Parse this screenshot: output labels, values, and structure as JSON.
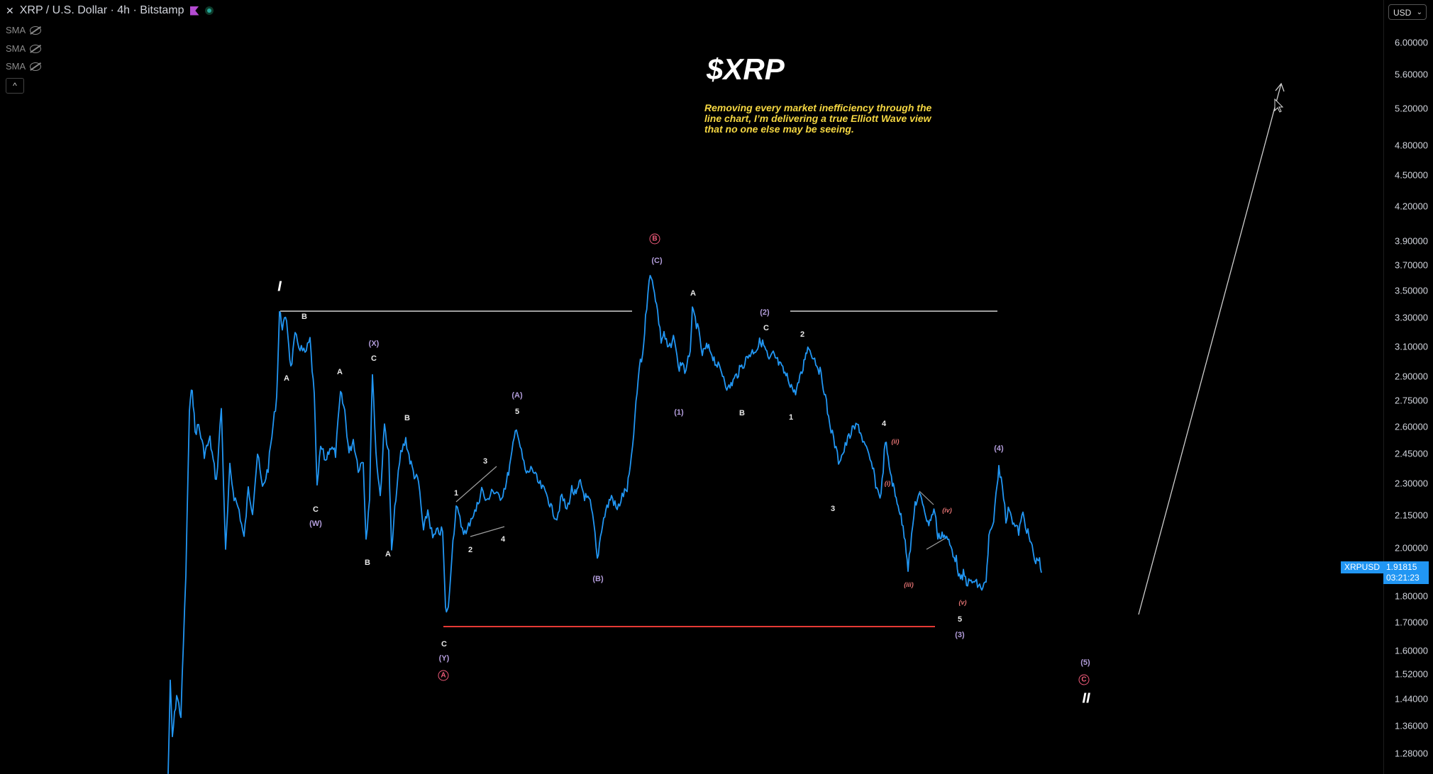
{
  "header": {
    "symbol_title": "XRP / U.S. Dollar · 4h · Bitstamp",
    "indicators": [
      "SMA",
      "SMA",
      "SMA"
    ],
    "collapse_glyph": "^"
  },
  "annotation": {
    "title": "$XRP",
    "description": "Removing every market inefficiency through the line chart, I’m delivering a true Elliott Wave view that no one else may be seeing."
  },
  "axis": {
    "currency": "USD",
    "ticks": [
      "6.00000",
      "5.60000",
      "5.20000",
      "4.80000",
      "4.50000",
      "4.20000",
      "3.90000",
      "3.70000",
      "3.50000",
      "3.30000",
      "3.10000",
      "2.90000",
      "2.75000",
      "2.60000",
      "2.45000",
      "2.30000",
      "2.15000",
      "2.00000",
      "1.80000",
      "1.70000",
      "1.60000",
      "1.52000",
      "1.44000",
      "1.36000",
      "1.28000"
    ],
    "symbol_badge": "XRPUSD",
    "last_price": "1.91815",
    "countdown": "03:21:23"
  },
  "colors": {
    "line": "#2196f3",
    "accent": "#f5d742",
    "support": "#e53935",
    "resistance": "#9e9e9e"
  },
  "wave_labels": [
    {
      "t": "I",
      "c": "big"
    },
    {
      "t": "B",
      "c": ""
    },
    {
      "t": "A",
      "c": ""
    },
    {
      "t": "A",
      "c": ""
    },
    {
      "t": "(X)",
      "c": "p"
    },
    {
      "t": "C",
      "c": ""
    },
    {
      "t": "C",
      "c": ""
    },
    {
      "t": "(W)",
      "c": "p"
    },
    {
      "t": "B",
      "c": ""
    },
    {
      "t": "B",
      "c": ""
    },
    {
      "t": "A",
      "c": ""
    },
    {
      "t": "1",
      "c": ""
    },
    {
      "t": "2",
      "c": ""
    },
    {
      "t": "3",
      "c": ""
    },
    {
      "t": "4",
      "c": ""
    },
    {
      "t": "(A)",
      "c": "p"
    },
    {
      "t": "5",
      "c": ""
    },
    {
      "t": "C",
      "c": ""
    },
    {
      "t": "(Y)",
      "c": "p"
    },
    {
      "t": "A",
      "c": "circ"
    },
    {
      "t": "(B)",
      "c": "p"
    },
    {
      "t": "B",
      "c": "circ"
    },
    {
      "t": "(C)",
      "c": "p"
    },
    {
      "t": "A",
      "c": ""
    },
    {
      "t": "(1)",
      "c": "p"
    },
    {
      "t": "(2)",
      "c": "p"
    },
    {
      "t": "C",
      "c": ""
    },
    {
      "t": "B",
      "c": ""
    },
    {
      "t": "2",
      "c": ""
    },
    {
      "t": "1",
      "c": ""
    },
    {
      "t": "4",
      "c": ""
    },
    {
      "t": "3",
      "c": ""
    },
    {
      "t": "(iii)",
      "c": "r"
    },
    {
      "t": "(i)",
      "c": "r"
    },
    {
      "t": "(ii)",
      "c": "r"
    },
    {
      "t": "(iv)",
      "c": "r"
    },
    {
      "t": "(v)",
      "c": "r"
    },
    {
      "t": "5",
      "c": ""
    },
    {
      "t": "(3)",
      "c": "p"
    },
    {
      "t": "(4)",
      "c": "p"
    },
    {
      "t": "(5)",
      "c": "p"
    },
    {
      "t": "C",
      "c": "circ"
    },
    {
      "t": "II",
      "c": "big"
    }
  ]
}
